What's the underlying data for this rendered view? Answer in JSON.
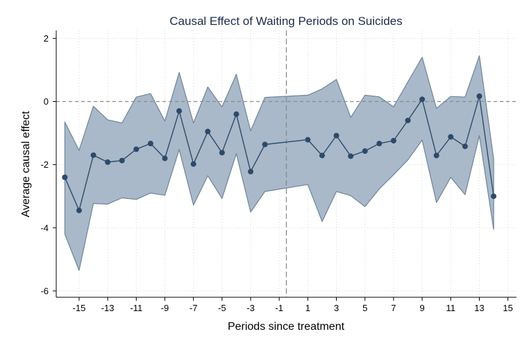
{
  "chart_data": {
    "type": "line",
    "title": "Causal Effect of Waiting Periods on Suicides",
    "xlabel": "Periods since treatment",
    "ylabel": "Average causal effect",
    "xlim": [
      -16.6,
      15.6
    ],
    "ylim": [
      -6.2,
      2.25
    ],
    "x_ticks": [
      -15,
      -13,
      -11,
      -9,
      -7,
      -5,
      -3,
      -1,
      1,
      3,
      5,
      7,
      9,
      11,
      13,
      15
    ],
    "y_ticks": [
      2,
      0,
      -2,
      -4,
      -6
    ],
    "grid": true,
    "legend": "none",
    "reference_lines": {
      "horizontal_y": 0,
      "vertical_x": -0.5
    },
    "colors": {
      "line": "#2d4a6b",
      "band_fill": "#a9b9c9",
      "band_edge": "#6e8399",
      "reference": "#8a8a8a",
      "grid": "#d8d8d8"
    },
    "series": [
      {
        "x": [
          -16,
          -15,
          -14,
          -13,
          -12,
          -11,
          -10,
          -9,
          -8,
          -7,
          -6,
          -5,
          -4,
          -3,
          -2,
          1,
          2,
          3,
          4,
          5,
          6,
          7,
          8,
          9,
          10,
          11,
          12,
          13,
          14
        ],
        "values": [
          -2.4,
          -3.45,
          -1.7,
          -1.92,
          -1.87,
          -1.51,
          -1.33,
          -1.8,
          -0.3,
          -1.98,
          -0.95,
          -1.62,
          -0.4,
          -2.22,
          -1.36,
          -1.21,
          -1.71,
          -1.08,
          -1.73,
          -1.57,
          -1.33,
          -1.24,
          -0.6,
          0.07,
          -1.71,
          -1.12,
          -1.42,
          0.17,
          -3.0
        ],
        "lower": [
          -4.2,
          -5.35,
          -3.23,
          -3.25,
          -3.05,
          -3.1,
          -2.9,
          -2.97,
          -1.52,
          -3.28,
          -2.35,
          -3.07,
          -1.65,
          -3.5,
          -2.85,
          -2.63,
          -3.8,
          -2.85,
          -2.98,
          -3.33,
          -2.77,
          -2.32,
          -1.85,
          -1.22,
          -3.2,
          -2.4,
          -2.95,
          -1.08,
          -4.05
        ],
        "upper": [
          -0.65,
          -1.55,
          -0.15,
          -0.58,
          -0.68,
          0.14,
          0.25,
          -0.62,
          0.92,
          -0.68,
          0.46,
          -0.17,
          0.86,
          -0.93,
          0.13,
          0.2,
          0.4,
          0.7,
          -0.5,
          0.2,
          0.15,
          -0.17,
          0.62,
          1.4,
          -0.22,
          0.16,
          0.14,
          1.45,
          -1.82
        ]
      }
    ]
  }
}
